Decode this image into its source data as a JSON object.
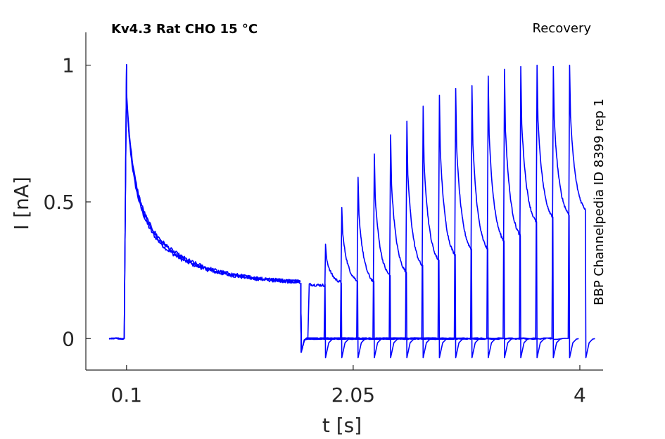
{
  "chart_data": {
    "type": "line",
    "title_left": "Kv4.3  Rat  CHO  15 °C",
    "title_right": "Recovery",
    "side_label": "BBP Channelpedia ID 8399 rep 1",
    "xlabel": "t [s]",
    "ylabel": "I [nA]",
    "xticks": [
      0.1,
      2.05,
      4
    ],
    "xtick_labels": [
      "0.1",
      "2.05",
      "4"
    ],
    "yticks": [
      0,
      0.5,
      1
    ],
    "ytick_labels": [
      "0",
      "0.5",
      "1"
    ],
    "xlim": [
      -0.25,
      4.2
    ],
    "ylim": [
      -0.115,
      1.12
    ],
    "grid": false,
    "series_color": "#0000ff",
    "protocol": {
      "baseline_start": -0.05,
      "first_pulse_onset": 0.08,
      "first_pulse_end": 1.6,
      "first_pulse_sustained": 0.2,
      "second_pulse_duration": 0.15,
      "recovery_intervals_s": [
        0.06,
        0.2,
        0.34,
        0.48,
        0.62,
        0.76,
        0.9,
        1.04,
        1.18,
        1.32,
        1.46,
        1.6,
        1.74,
        1.88,
        2.02,
        2.16,
        2.3
      ],
      "recovery_peaks_nA": [
        0.2,
        0.345,
        0.48,
        0.59,
        0.675,
        0.745,
        0.795,
        0.85,
        0.89,
        0.915,
        0.925,
        0.96,
        0.985,
        0.995,
        1.0,
        0.995,
        1.0
      ],
      "recovery_sustained_nA": [
        0.195,
        0.2,
        0.2,
        0.19,
        0.21,
        0.22,
        0.24,
        0.26,
        0.28,
        0.3,
        0.3,
        0.33,
        0.35,
        0.4,
        0.42,
        0.43,
        0.45
      ]
    }
  }
}
